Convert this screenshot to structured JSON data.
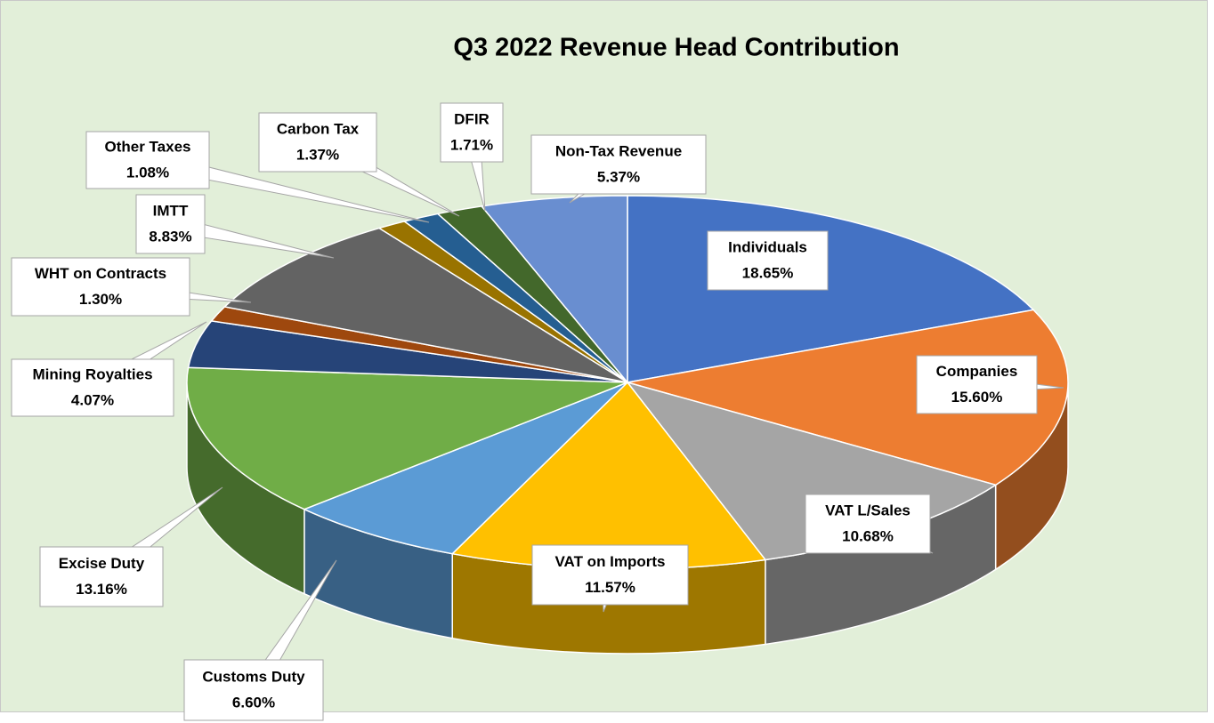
{
  "chart_data": {
    "type": "pie",
    "title": "Q3 2022 Revenue Head Contribution",
    "categories": [
      "Individuals",
      "Companies",
      "VAT L/Sales",
      "VAT on Imports",
      "Customs Duty",
      "Excise Duty",
      "Mining Royalties",
      "WHT on Contracts",
      "IMTT",
      "Other Taxes",
      "Carbon Tax",
      "DFIR",
      "Non-Tax Revenue"
    ],
    "values": [
      18.65,
      15.6,
      10.68,
      11.57,
      6.6,
      13.16,
      4.07,
      1.3,
      8.83,
      1.08,
      1.37,
      1.71,
      5.37
    ],
    "value_labels": [
      "18.65%",
      "15.60%",
      "10.68%",
      "11.57%",
      "6.60%",
      "13.16%",
      "4.07%",
      "1.30%",
      "8.83%",
      "1.08%",
      "1.37%",
      "1.71%",
      "5.37%"
    ],
    "colors": [
      "#4472c4",
      "#ed7d31",
      "#a5a5a5",
      "#ffc000",
      "#5b9bd5",
      "#70ad47",
      "#264478",
      "#9e480e",
      "#636363",
      "#997300",
      "#255e91",
      "#43682b",
      "#698ed0"
    ]
  }
}
